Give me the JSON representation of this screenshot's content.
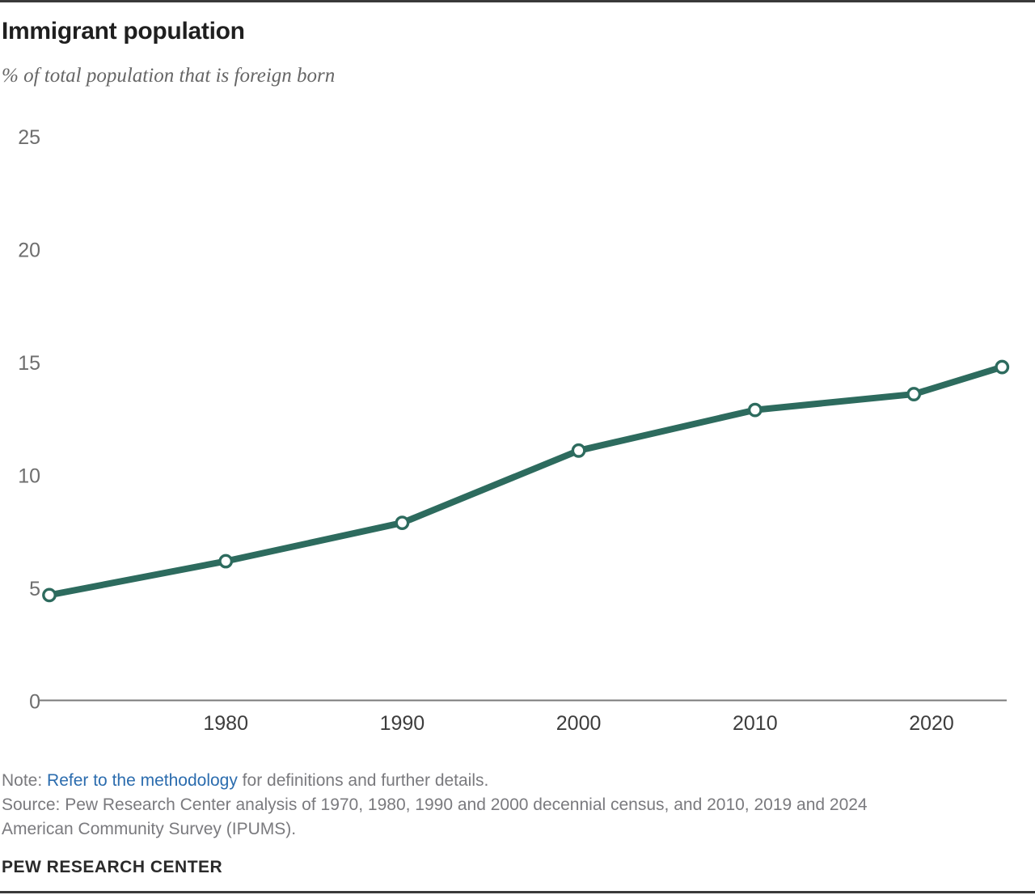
{
  "header": {
    "title": "Immigrant population",
    "subtitle": "% of total population that is foreign born"
  },
  "chart_data": {
    "type": "line",
    "title": "Immigrant population",
    "subtitle": "% of total population that is foreign born",
    "x": [
      1970,
      1980,
      1990,
      2000,
      2010,
      2019,
      2024
    ],
    "values": [
      4.7,
      6.2,
      7.9,
      11.1,
      12.9,
      13.6,
      14.8
    ],
    "series_name": "% of total population that is foreign born",
    "xlabel": "",
    "ylabel": "",
    "ylim": [
      0,
      25
    ],
    "yticks": [
      0,
      5,
      10,
      15,
      20,
      25
    ],
    "xtick_labels": [
      1980,
      1990,
      2000,
      2010,
      2020
    ],
    "grid": false,
    "legend": "none",
    "marker": "open-circle",
    "line_color": "#2d6b5e"
  },
  "note": {
    "prefix": "Note: ",
    "link": "Refer to the methodology",
    "suffix": " for definitions and further details."
  },
  "source_lines": [
    "Source: Pew Research Center analysis of 1970, 1980, 1990 and 2000 decennial census, and 2010, 2019 and 2024",
    "American Community Survey (IPUMS)."
  ],
  "footer": "PEW RESEARCH CENTER",
  "colors": {
    "accent_green": "#2d6b5e",
    "marker_fill": "#ffffff",
    "link_blue": "#2b6cae",
    "title_dark": "#1f1f1f",
    "subtitle_gray": "#666666",
    "note_gray": "#7a7a7e",
    "ytick_gray": "#6e6e6e",
    "xtick_dark": "#3d3d3d",
    "axis_line_gray": "#7a7a7a",
    "border_dark": "#3a3a3a"
  }
}
